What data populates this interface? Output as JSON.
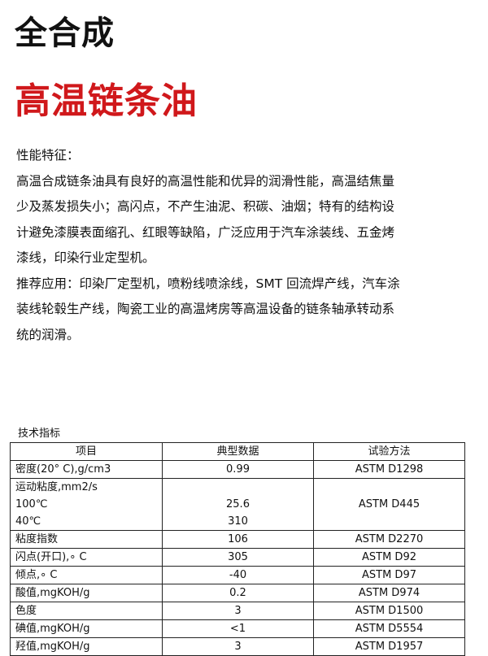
{
  "title": "全合成",
  "subtitle": "高温链条油",
  "colors": {
    "subtitle": "#d0181b"
  },
  "body_lines": [
    "性能特征：",
    "高温合成链条油具有良好的高温性能和优异的润滑性能，高温结焦量",
    "少及蒸发损失小；高闪点，不产生油泥、积碳、油烟；特有的结构设",
    "计避免漆膜表面缩孔、红眼等缺陷，广泛应用于汽车涂装线、五金烤",
    "漆线，印染行业定型机。",
    "推荐应用：印染厂定型机，喷粉线喷涂线，SMT 回流焊产线，汽车涂",
    "装线轮毂生产线，陶瓷工业的高温烤房等高温设备的链条轴承转动系",
    "统的润滑。"
  ],
  "table_caption": "技术指标",
  "table": {
    "headers": [
      "项目",
      "典型数据",
      "试验方法"
    ],
    "rows": [
      {
        "item": "密度(20° C),g/cm3",
        "value": "0.99",
        "method": "ASTM D1298"
      },
      {
        "item": "粘度指数",
        "value": "106",
        "method": "ASTM D2270"
      },
      {
        "item": "闪点(开口),∘ C",
        "value": "305",
        "method": "ASTM D92"
      },
      {
        "item": "倾点,∘ C",
        "value": "-40",
        "method": "ASTM D97"
      },
      {
        "item": "酸值,mgKOH/g",
        "value": "0.2",
        "method": "ASTM D974"
      },
      {
        "item": "色度",
        "value": "3",
        "method": "ASTM D1500"
      },
      {
        "item": "碘值,mgKOH/g",
        "value": "<1",
        "method": "ASTM D5554"
      },
      {
        "item": "羟值,mgKOH/g",
        "value": "3",
        "method": "ASTM D1957"
      }
    ],
    "viscosity": {
      "item": "运动粘度,mm2/s",
      "sub1": "100℃",
      "val1": "25.6",
      "sub2": "40℃",
      "val2": "310",
      "method": "ASTM D445"
    }
  }
}
